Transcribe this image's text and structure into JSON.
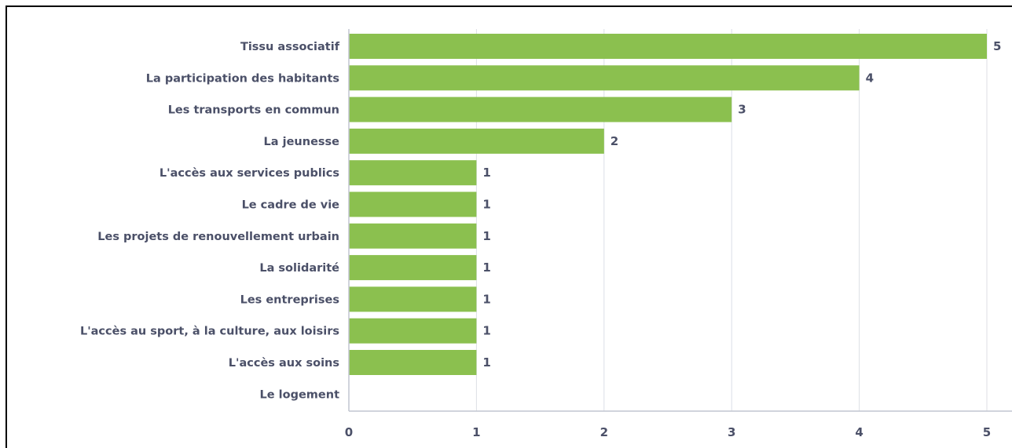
{
  "chart_data": {
    "type": "bar",
    "orientation": "horizontal",
    "categories": [
      "Tissu associatif",
      "La participation des habitants",
      "Les transports en commun",
      "La jeunesse",
      "L'accès aux services publics",
      "Le cadre de vie",
      "Les projets de renouvellement urbain",
      "La solidarité",
      "Les entreprises",
      "L'accès au sport, à la culture, aux loisirs",
      "L'accès aux soins",
      "Le logement"
    ],
    "values": [
      5,
      4,
      3,
      2,
      1,
      1,
      1,
      1,
      1,
      1,
      1,
      0
    ],
    "value_labels": [
      "5",
      "4",
      "3",
      "2",
      "1",
      "1",
      "1",
      "1",
      "1",
      "1",
      "1",
      ""
    ],
    "xlim": [
      0,
      5
    ],
    "x_ticks": [
      "0",
      "1",
      "2",
      "3",
      "4",
      "5"
    ],
    "title": "",
    "xlabel": "",
    "ylabel": "",
    "grid": "vertical",
    "legend": "none",
    "bar_color": "#8bc04f",
    "text_color": "#4b5068",
    "grid_color": "#dcdfe6",
    "axis_color": "#c2c6d0"
  }
}
